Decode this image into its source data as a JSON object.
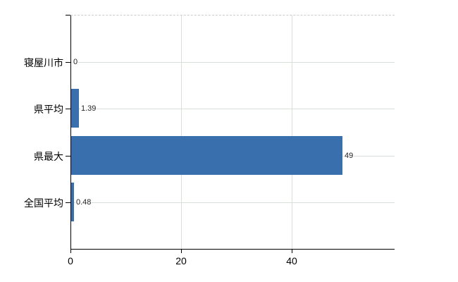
{
  "chart_data": {
    "type": "bar",
    "orientation": "horizontal",
    "title": "",
    "xlabel": "",
    "ylabel": "",
    "categories": [
      "寝屋川市",
      "県平均",
      "県最大",
      "全国平均"
    ],
    "values": [
      0,
      1.39,
      49,
      0.48
    ],
    "value_labels": [
      "0",
      "1.39",
      "49",
      "0.48"
    ],
    "xticks": [
      0,
      20,
      40
    ],
    "xtick_labels": [
      "0",
      "20",
      "40"
    ],
    "xlim": [
      0,
      58.6
    ],
    "grid": true,
    "legend_position": "none",
    "colors": {
      "bar": "#3a6fad",
      "grid": "#d9e0d9",
      "axis": "#000000",
      "value_label_text": "#222222",
      "top_border": "#cccccc",
      "background": "#ffffff"
    }
  }
}
